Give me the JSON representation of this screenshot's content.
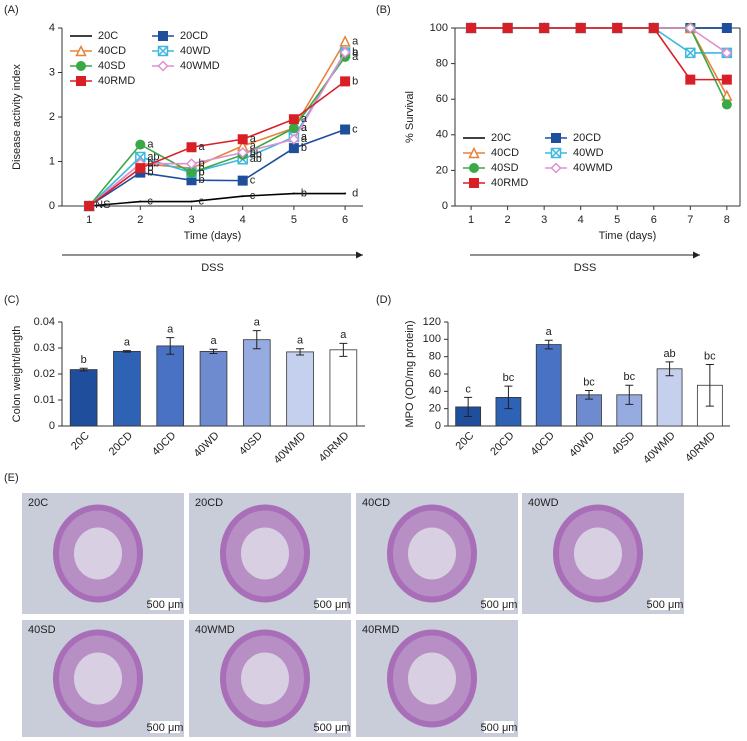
{
  "chart_data": [
    {
      "type": "line",
      "panel": "(A)",
      "x_label": "Time (days)",
      "y_label": "Disease activity index",
      "arrow_label": "DSS",
      "legend": "upper left",
      "x": [
        1,
        2,
        3,
        4,
        5,
        6
      ],
      "xlim": [
        0.47,
        6.35
      ],
      "xticks": [
        1,
        2,
        3,
        4,
        5,
        6
      ],
      "ylim": [
        0,
        4
      ],
      "yticks": [
        0,
        1,
        2,
        3,
        4
      ],
      "series": [
        {
          "name": "20C",
          "color": "#000000",
          "marker": "none",
          "values": [
            0,
            0.1,
            0.1,
            0.22,
            0.28,
            0.28
          ],
          "point_labels": [
            "NS",
            "c",
            "c",
            "c",
            "b",
            "d"
          ]
        },
        {
          "name": "20CD",
          "color": "#1f4e9c",
          "marker": "square",
          "values": [
            0,
            0.75,
            0.58,
            0.57,
            1.3,
            1.72
          ],
          "point_labels": [
            null,
            "b",
            "b",
            "c",
            "b",
            "c"
          ]
        },
        {
          "name": "40CD",
          "color": "#e8823a",
          "marker": "triangle",
          "values": [
            0,
            0.95,
            0.85,
            1.35,
            1.75,
            3.7
          ],
          "point_labels": [
            null,
            "ab",
            "b",
            "a",
            "a",
            "a"
          ]
        },
        {
          "name": "40WD",
          "color": "#3db8e0",
          "marker": "x",
          "values": [
            0,
            1.1,
            0.75,
            1.05,
            1.55,
            3.45
          ],
          "point_labels": [
            null,
            "ab",
            "b",
            "ab",
            "a",
            "a"
          ]
        },
        {
          "name": "40SD",
          "color": "#3aa845",
          "marker": "circle",
          "values": [
            0,
            1.38,
            0.75,
            1.15,
            1.75,
            3.35
          ],
          "point_labels": [
            null,
            "a",
            "b",
            "ab",
            "a",
            "a"
          ]
        },
        {
          "name": "40WMD",
          "color": "#e08fd0",
          "marker": "diamond",
          "values": [
            0,
            0.95,
            0.95,
            1.2,
            1.5,
            3.45
          ],
          "point_labels": [
            null,
            "b",
            "b",
            "b",
            "a",
            "b"
          ]
        },
        {
          "name": "40RMD",
          "color": "#d91f26",
          "marker": "square",
          "values": [
            0,
            0.85,
            1.32,
            1.5,
            1.95,
            2.8
          ],
          "point_labels": [
            null,
            "b",
            "a",
            "a",
            "a",
            "b"
          ]
        }
      ]
    },
    {
      "type": "line",
      "panel": "(B)",
      "x_label": "Time (days)",
      "y_label": "% Survival",
      "arrow_label": "DSS",
      "legend": "lower left",
      "x": [
        1,
        2,
        3,
        4,
        5,
        6,
        7,
        8
      ],
      "xlim": [
        0.56,
        8.36
      ],
      "xticks": [
        1,
        2,
        3,
        4,
        5,
        6,
        7,
        8
      ],
      "ylim": [
        0,
        100
      ],
      "yticks": [
        0,
        20,
        40,
        60,
        80,
        100
      ],
      "series": [
        {
          "name": "20C",
          "color": "#000000",
          "marker": "none",
          "values": [
            100,
            100,
            100,
            100,
            100,
            100,
            100,
            100
          ]
        },
        {
          "name": "20CD",
          "color": "#1f4e9c",
          "marker": "square",
          "values": [
            100,
            100,
            100,
            100,
            100,
            100,
            100,
            100
          ]
        },
        {
          "name": "40CD",
          "color": "#e8823a",
          "marker": "triangle",
          "values": [
            100,
            100,
            100,
            100,
            100,
            100,
            100,
            62
          ]
        },
        {
          "name": "40WD",
          "color": "#3db8e0",
          "marker": "x",
          "values": [
            100,
            100,
            100,
            100,
            100,
            100,
            86,
            86
          ]
        },
        {
          "name": "40SD",
          "color": "#3aa845",
          "marker": "circle",
          "values": [
            100,
            100,
            100,
            100,
            100,
            100,
            100,
            57
          ]
        },
        {
          "name": "40WMD",
          "color": "#e08fd0",
          "marker": "diamond",
          "values": [
            100,
            100,
            100,
            100,
            100,
            100,
            100,
            86
          ]
        },
        {
          "name": "40RMD",
          "color": "#d91f26",
          "marker": "square",
          "values": [
            100,
            100,
            100,
            100,
            100,
            100,
            71,
            71
          ]
        }
      ]
    },
    {
      "type": "bar",
      "panel": "(C)",
      "y_label": "Colon weight/length",
      "categories": [
        "20C",
        "20CD",
        "40CD",
        "40WD",
        "40SD",
        "40WMD",
        "40RMD"
      ],
      "values": [
        0.0217,
        0.0287,
        0.0308,
        0.0287,
        0.0332,
        0.0285,
        0.0293
      ],
      "errors": [
        0.0005,
        0.0003,
        0.0032,
        0.0008,
        0.0035,
        0.0012,
        0.0025
      ],
      "letters": [
        "b",
        "a",
        "a",
        "a",
        "a",
        "a",
        "a"
      ],
      "colors": [
        "#1f4e9c",
        "#2e62b5",
        "#4a72c4",
        "#6f8bd0",
        "#96abdf",
        "#c5d0ee",
        "#ffffff"
      ],
      "ylim": [
        0,
        0.04
      ],
      "yticks": [
        0,
        0.01,
        0.02,
        0.03,
        0.04
      ]
    },
    {
      "type": "bar",
      "panel": "(D)",
      "y_label": "MPO (OD/mg protein)",
      "categories": [
        "20C",
        "20CD",
        "40CD",
        "40WD",
        "40SD",
        "40WMD",
        "40RMD"
      ],
      "values": [
        22,
        33,
        94,
        36,
        36,
        66,
        47
      ],
      "errors": [
        11,
        13,
        5,
        5,
        11,
        8,
        24
      ],
      "letters": [
        "c",
        "bc",
        "a",
        "bc",
        "bc",
        "ab",
        "bc"
      ],
      "colors": [
        "#1f4e9c",
        "#2e62b5",
        "#4a72c4",
        "#6f8bd0",
        "#96abdf",
        "#c5d0ee",
        "#ffffff"
      ],
      "ylim": [
        0,
        120
      ],
      "yticks": [
        0,
        20,
        40,
        60,
        80,
        100,
        120
      ]
    }
  ],
  "panel_e": {
    "panel": "(E)",
    "images": [
      {
        "label": "20C",
        "scale_bar": "500 μm"
      },
      {
        "label": "20CD",
        "scale_bar": "500 μm"
      },
      {
        "label": "40CD",
        "scale_bar": "500 μm"
      },
      {
        "label": "40WD",
        "scale_bar": "500 μm"
      },
      {
        "label": "40SD",
        "scale_bar": "500 μm"
      },
      {
        "label": "40WMD",
        "scale_bar": "500 μm"
      },
      {
        "label": "40RMD",
        "scale_bar": "500 μm"
      }
    ]
  }
}
